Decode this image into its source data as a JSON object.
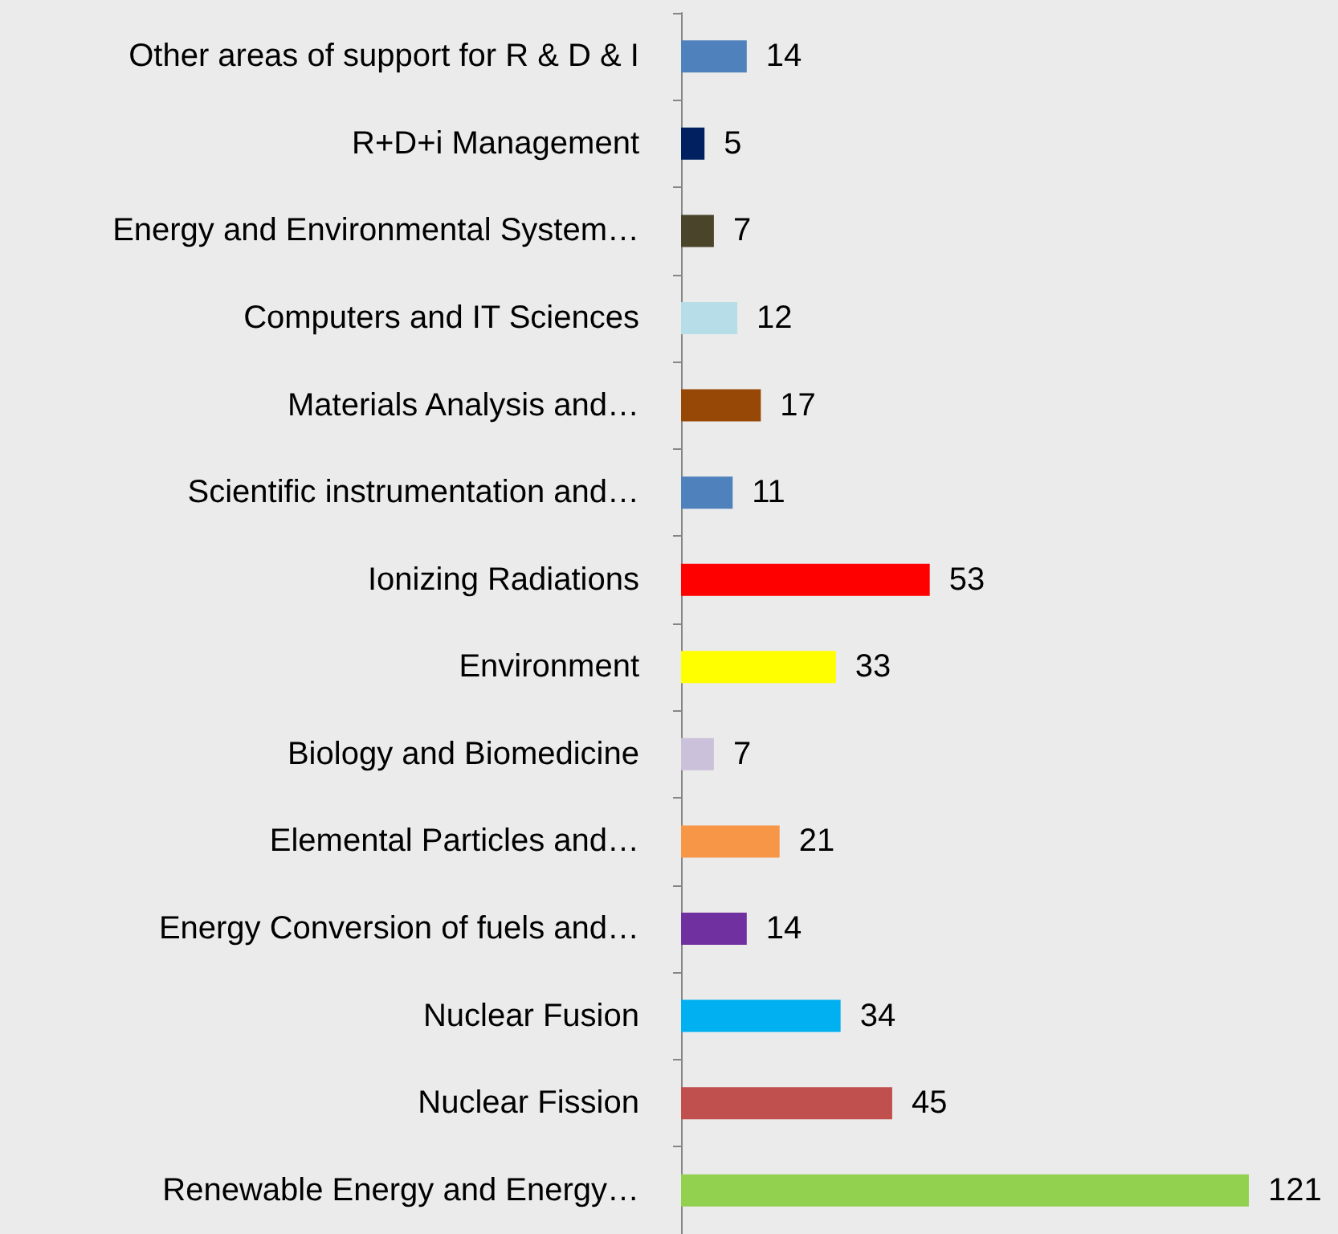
{
  "chart_data": {
    "type": "bar",
    "orientation": "horizontal",
    "data_labels": true,
    "tick_labels": "y",
    "categories": [
      "Other areas of support for R & D & I",
      "R+D+i Management",
      "Energy and Environmental System…",
      "Computers and IT Sciences",
      "Materials Analysis and…",
      "Scientific instrumentation and…",
      "Ionizing Radiations",
      "Environment",
      "Biology and Biomedicine",
      "Elemental Particles and…",
      "Energy Conversion of fuels and…",
      "Nuclear Fusion",
      "Nuclear Fission",
      "Renewable Energy and Energy…"
    ],
    "values": [
      14,
      5,
      7,
      12,
      17,
      11,
      53,
      33,
      7,
      21,
      14,
      34,
      45,
      121
    ],
    "colors": [
      "#4f81bd",
      "#002060",
      "#4a452a",
      "#b7dde8",
      "#974806",
      "#4f81bd",
      "#ff0000",
      "#ffff00",
      "#ccc1da",
      "#f79646",
      "#7030a0",
      "#00b0f0",
      "#c0504d",
      "#92d050"
    ]
  }
}
